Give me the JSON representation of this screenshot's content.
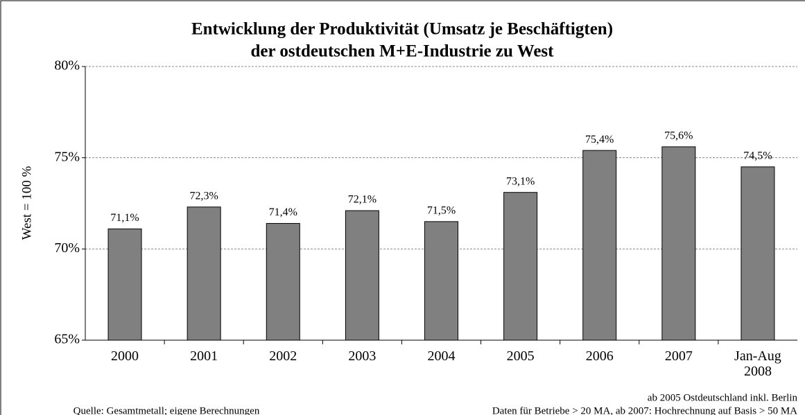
{
  "chart_data": {
    "type": "bar",
    "title": "Entwicklung der Produktivität (Umsatz je Beschäftigten)",
    "subtitle": "der ostdeutschen M+E-Industrie zu West",
    "y_label": "West = 100 %",
    "categories": [
      "2000",
      "2001",
      "2002",
      "2003",
      "2004",
      "2005",
      "2006",
      "2007",
      "Jan-Aug 2008"
    ],
    "values": [
      71.1,
      72.3,
      71.4,
      72.1,
      71.5,
      73.1,
      75.4,
      75.6,
      74.5
    ],
    "value_labels": [
      "71,1%",
      "72,3%",
      "71,4%",
      "72,1%",
      "71,5%",
      "73,1%",
      "75,4%",
      "75,6%",
      "74,5%"
    ],
    "color": "#808080",
    "ylim": [
      65,
      80
    ],
    "yticks": [
      {
        "value": 65,
        "label": "65%"
      },
      {
        "value": 70,
        "label": "70%"
      },
      {
        "value": 75,
        "label": "75%"
      },
      {
        "value": 80,
        "label": "80%"
      }
    ],
    "grid": true,
    "notes": {
      "source": "Quelle: Gesamtmetall; eigene Berechnungen",
      "note1": "ab 2005 Ostdeutschland inkl. Berlin",
      "note2": "Daten für Betriebe > 20 MA, ab 2007: Hochrechnung auf Basis > 50 MA"
    }
  }
}
